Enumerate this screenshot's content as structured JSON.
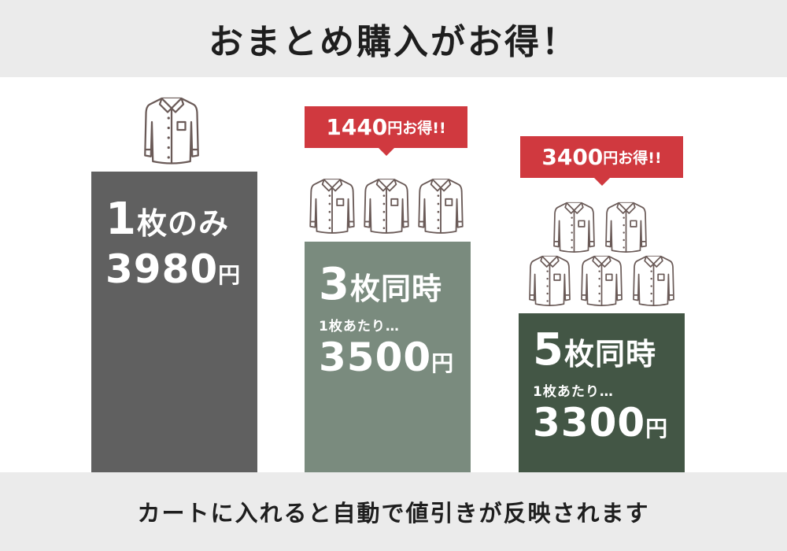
{
  "title": "おまとめ購入がお得！",
  "footer": "カートに入れると自動で値引きが反映されます",
  "colors": {
    "band": "#ebebeb",
    "bar1": "#606060",
    "bar2": "#7a8b7e",
    "bar3": "#435645",
    "badge": "#d0393f"
  },
  "icons": [
    "shirt-icon"
  ],
  "plans": [
    {
      "qty_num": "1",
      "qty_text": "枚のみ",
      "price": "3980",
      "unit": "円",
      "shirts": 1
    },
    {
      "qty_num": "3",
      "qty_text": "枚同時",
      "per_label": "1枚あたり…",
      "price": "3500",
      "unit": "円",
      "shirts": 3,
      "badge_num": "1440",
      "badge_text": "円お得!!"
    },
    {
      "qty_num": "5",
      "qty_text": "枚同時",
      "per_label": "1枚あたり…",
      "price": "3300",
      "unit": "円",
      "shirts": 5,
      "badge_num": "3400",
      "badge_text": "円お得!!"
    }
  ]
}
